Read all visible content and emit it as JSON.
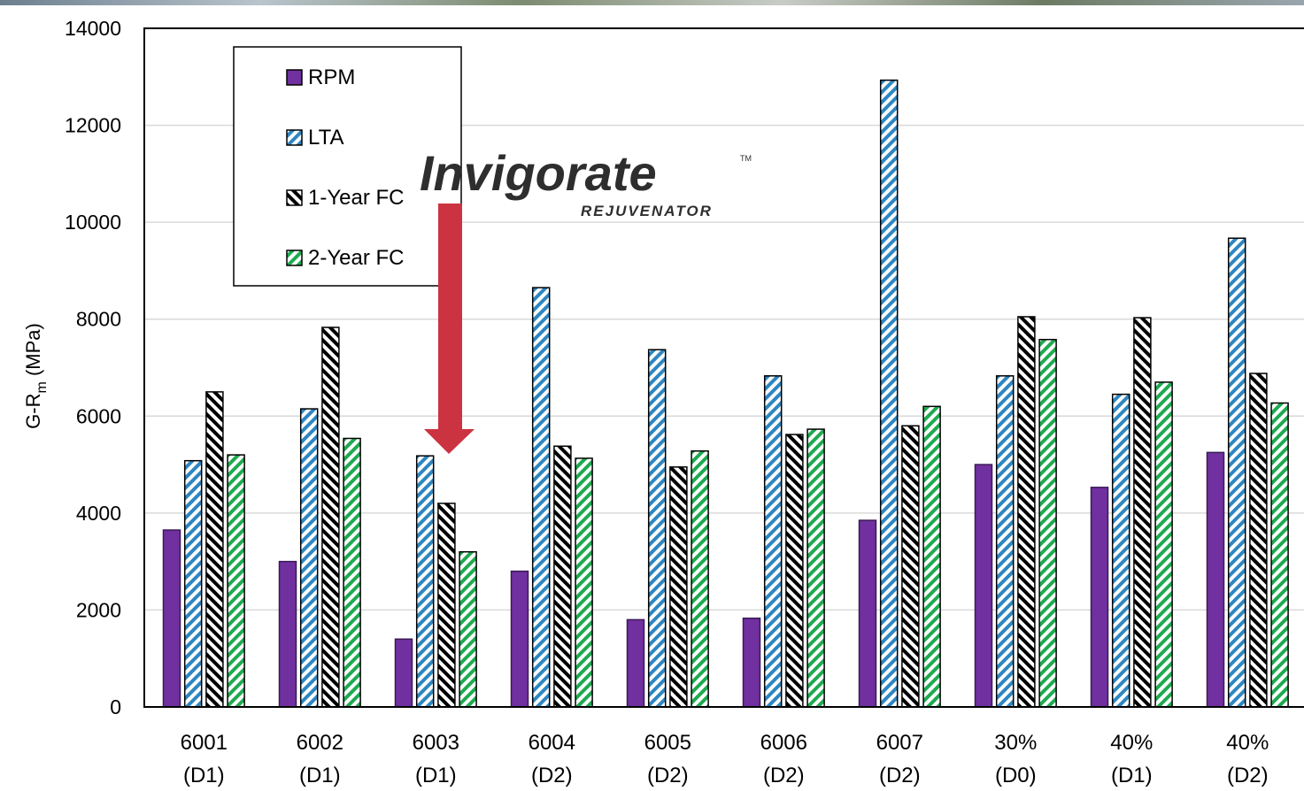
{
  "chart_data": {
    "type": "bar",
    "ylabel": "G-R",
    "ylabel_sub": "m",
    "ylabel_unit": " (MPa)",
    "ylim": [
      0,
      14000
    ],
    "yticks": [
      0,
      2000,
      4000,
      6000,
      8000,
      10000,
      12000,
      14000
    ],
    "grid": true,
    "legend_position": "top-left",
    "categories": [
      [
        "6001",
        "(D1)"
      ],
      [
        "6002",
        "(D1)"
      ],
      [
        "6003",
        "(D1)"
      ],
      [
        "6004",
        "(D2)"
      ],
      [
        "6005",
        "(D2)"
      ],
      [
        "6006",
        "(D2)"
      ],
      [
        "6007",
        "(D2)"
      ],
      [
        "30%",
        "(D0)"
      ],
      [
        "40%",
        "(D1)"
      ],
      [
        "40%",
        "(D2)"
      ]
    ],
    "series": [
      {
        "name": "RPM",
        "color": "#7030a0",
        "pattern": "solid",
        "values": [
          3650,
          3000,
          1400,
          2800,
          1800,
          1830,
          3850,
          5000,
          4530,
          5250
        ]
      },
      {
        "name": "LTA",
        "color": "#2e86c1",
        "pattern": "stripe-blue",
        "values": [
          5080,
          6150,
          5180,
          8650,
          7370,
          6830,
          12930,
          6830,
          6450,
          9670
        ]
      },
      {
        "name": "1-Year FC",
        "color": "#000000",
        "pattern": "stripe-black",
        "values": [
          6500,
          7830,
          4200,
          5380,
          4950,
          5620,
          5800,
          8050,
          8030,
          6880
        ]
      },
      {
        "name": "2-Year FC",
        "color": "#1eaa50",
        "pattern": "stripe-green",
        "values": [
          5200,
          5540,
          3200,
          5130,
          5280,
          5730,
          6200,
          7580,
          6700,
          6270
        ]
      }
    ],
    "annotations": {
      "logo_text": "Invigorate",
      "logo_subtext": "REJUVENATOR",
      "logo_tm": "TM",
      "arrow_color": "#cc3340",
      "arrow_target_category": "6003"
    }
  }
}
